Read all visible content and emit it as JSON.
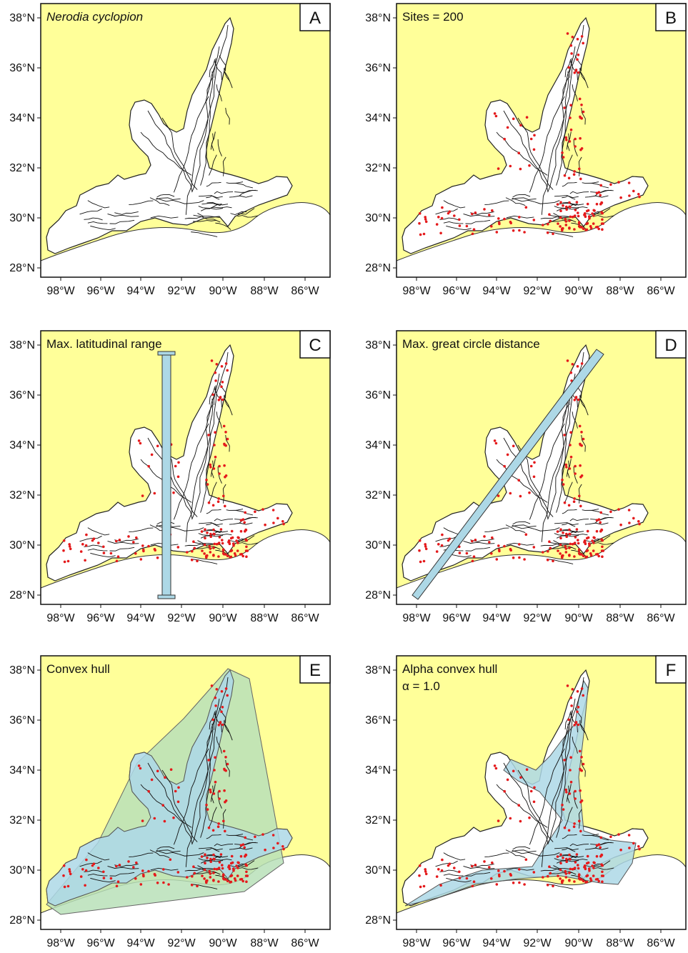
{
  "figure": {
    "lat_ticks": [
      "38°N",
      "36°N",
      "34°N",
      "32°N",
      "30°N",
      "28°N"
    ],
    "lon_ticks": [
      "98°W",
      "96°W",
      "94°W",
      "92°W",
      "90°W",
      "88°W",
      "86°W"
    ],
    "colors": {
      "outside": "#ffff99",
      "land": "#ffffff",
      "rivers": "#111111",
      "sites": "#e41a1c",
      "overlay": "#add8e6",
      "hull": "#b8e0b8"
    },
    "panels": [
      {
        "letter": "A",
        "title": "Nerodia cyclopion",
        "title_italic": true,
        "subtitle": "",
        "overlay": "none",
        "show_sites": false
      },
      {
        "letter": "B",
        "title": "Sites = 200",
        "title_italic": false,
        "subtitle": "",
        "overlay": "none",
        "show_sites": true
      },
      {
        "letter": "C",
        "title": "Max. latitudinal range",
        "title_italic": false,
        "subtitle": "",
        "overlay": "latitudinal-bar",
        "show_sites": true
      },
      {
        "letter": "D",
        "title": "Max. great circle distance",
        "title_italic": false,
        "subtitle": "",
        "overlay": "great-circle-bar",
        "show_sites": true
      },
      {
        "letter": "E",
        "title": "Convex hull",
        "title_italic": false,
        "subtitle": "",
        "overlay": "convex-hull",
        "show_sites": true
      },
      {
        "letter": "F",
        "title": "Alpha convex hull",
        "title_italic": false,
        "subtitle": "α = 1.0",
        "overlay": "alpha-hull",
        "show_sites": true
      }
    ]
  }
}
